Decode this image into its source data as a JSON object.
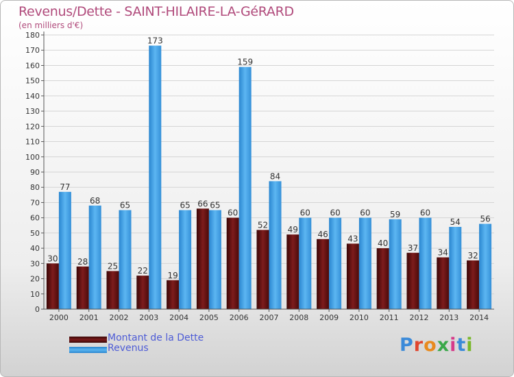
{
  "title": "Revenus/Dette - SAINT-HILAIRE-LA-GéRARD",
  "subtitle": "(en milliers d'€)",
  "logo": {
    "text": "Proxiti"
  },
  "colors": {
    "debt": "#6a1212",
    "revenue": "#3f9ee3",
    "title": "#b04a7b",
    "legend_text": "#4d5bd6"
  },
  "chart_data": {
    "type": "bar",
    "categories": [
      "2000",
      "2001",
      "2002",
      "2003",
      "2004",
      "2005",
      "2006",
      "2007",
      "2008",
      "2009",
      "2010",
      "2011",
      "2012",
      "2013",
      "2014"
    ],
    "series": [
      {
        "name": "Montant de la Dette",
        "values": [
          30,
          28,
          25,
          22,
          19,
          66,
          60,
          52,
          49,
          46,
          43,
          40,
          37,
          34,
          32
        ]
      },
      {
        "name": "Revenus",
        "values": [
          77,
          68,
          65,
          173,
          65,
          65,
          159,
          84,
          60,
          60,
          60,
          59,
          60,
          54,
          56
        ]
      }
    ],
    "ylim": [
      0,
      180
    ],
    "yticks": [
      0,
      10,
      20,
      30,
      40,
      50,
      60,
      70,
      80,
      90,
      100,
      110,
      120,
      130,
      140,
      150,
      160,
      170,
      180
    ],
    "grid": true,
    "legend": "bottom-left"
  }
}
